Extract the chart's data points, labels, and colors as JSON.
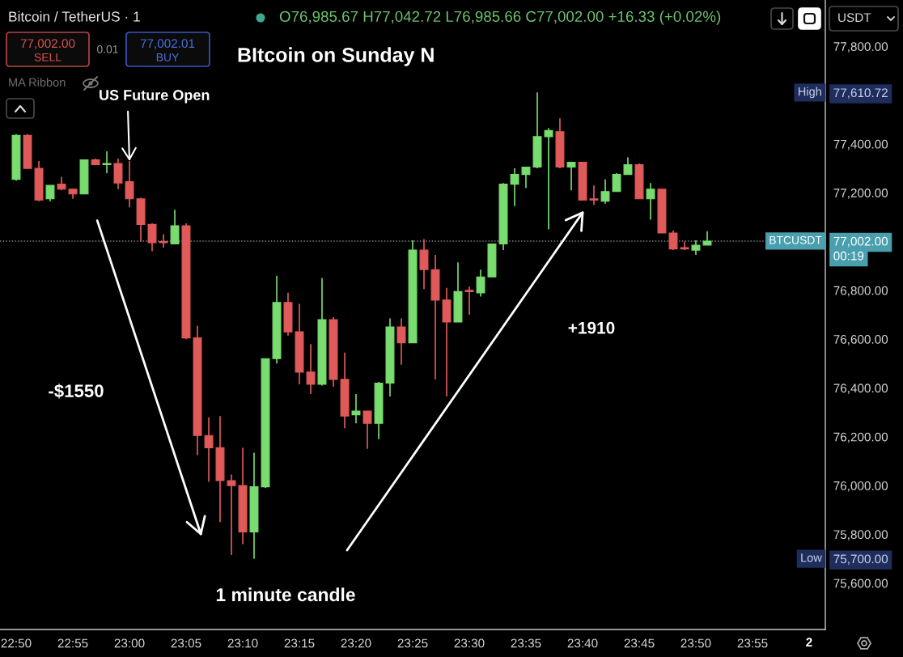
{
  "chart_data": {
    "type": "candlestick",
    "title": "BItcoin on Sunday N",
    "x": [
      22.8333,
      22.85,
      22.8667,
      22.8833,
      22.9,
      22.9167,
      22.9333,
      22.95,
      22.9667,
      22.9833,
      23.0,
      23.0167,
      23.0333,
      23.05,
      23.0667,
      23.0833,
      23.1,
      23.1167,
      23.1333,
      23.15,
      23.1667,
      23.1833,
      23.2,
      23.2167,
      23.2333,
      23.25,
      23.2667,
      23.2833,
      23.3,
      23.3167,
      23.3333,
      23.35,
      23.3667,
      23.3833,
      23.4,
      23.4167,
      23.4333,
      23.45,
      23.4667,
      23.4833,
      23.5,
      23.5167,
      23.5333,
      23.55,
      23.5667,
      23.5833,
      23.6,
      23.6167,
      23.6333,
      23.65,
      23.6667,
      23.6833,
      23.7,
      23.7167,
      23.7333,
      23.75,
      23.7667,
      23.7833,
      23.8,
      23.8167,
      23.8333,
      23.85
    ],
    "ohlc": [
      [
        77255,
        77440,
        77250,
        77435
      ],
      [
        77435,
        77440,
        77300,
        77300
      ],
      [
        77300,
        77330,
        77165,
        77170
      ],
      [
        77175,
        77230,
        77165,
        77230
      ],
      [
        77235,
        77265,
        77210,
        77215
      ],
      [
        77215,
        77215,
        77175,
        77195
      ],
      [
        77195,
        77335,
        77195,
        77335
      ],
      [
        77335,
        77340,
        77315,
        77315
      ],
      [
        77315,
        77370,
        77280,
        77320
      ],
      [
        77320,
        77340,
        77215,
        77240
      ],
      [
        77245,
        77330,
        77140,
        77175
      ],
      [
        77175,
        77180,
        77000,
        77070
      ],
      [
        77070,
        77075,
        76960,
        76995
      ],
      [
        77000,
        77030,
        76975,
        76995
      ],
      [
        76990,
        77130,
        76990,
        77065
      ],
      [
        77065,
        77075,
        76600,
        76605
      ],
      [
        76605,
        76655,
        76125,
        76205
      ],
      [
        76205,
        76280,
        76015,
        76155
      ],
      [
        76155,
        76285,
        75850,
        76020
      ],
      [
        76020,
        76045,
        75715,
        76000
      ],
      [
        76000,
        76155,
        75760,
        75810
      ],
      [
        75810,
        76135,
        75700.0,
        75995
      ],
      [
        75995,
        76520,
        75990,
        76520
      ],
      [
        76520,
        76860,
        76500,
        76750
      ],
      [
        76750,
        76790,
        76615,
        76630
      ],
      [
        76630,
        76745,
        76415,
        76465
      ],
      [
        76465,
        76580,
        76375,
        76415
      ],
      [
        76415,
        76850,
        76410,
        76680
      ],
      [
        76680,
        76690,
        76405,
        76435
      ],
      [
        76435,
        76545,
        76235,
        76285
      ],
      [
        76290,
        76375,
        76255,
        76305
      ],
      [
        76305,
        76305,
        76150,
        76255
      ],
      [
        76255,
        76425,
        76190,
        76420
      ],
      [
        76420,
        76685,
        76365,
        76650
      ],
      [
        76650,
        76685,
        76495,
        76585
      ],
      [
        76585,
        77005,
        76585,
        76965
      ],
      [
        76965,
        77010,
        76805,
        76885
      ],
      [
        76885,
        76945,
        76435,
        76760
      ],
      [
        76760,
        76810,
        76365,
        76670
      ],
      [
        76670,
        76915,
        76670,
        76795
      ],
      [
        76800,
        76815,
        76700,
        76795
      ],
      [
        76790,
        76885,
        76775,
        76855
      ],
      [
        76855,
        76990,
        76855,
        76990
      ],
      [
        76990,
        77240,
        76965,
        77235
      ],
      [
        77235,
        77300,
        77145,
        77275
      ],
      [
        77275,
        77305,
        77220,
        77305
      ],
      [
        77305,
        77610.72,
        77300,
        77430
      ],
      [
        77430,
        77465,
        77050,
        77455
      ],
      [
        77450,
        77505,
        77300,
        77305
      ],
      [
        77305,
        77325,
        77210,
        77325
      ],
      [
        77325,
        77325,
        77170,
        77170
      ],
      [
        77175,
        77230,
        77150,
        77170
      ],
      [
        77165,
        77255,
        77155,
        77205
      ],
      [
        77205,
        77280,
        77205,
        77275
      ],
      [
        77275,
        77345,
        77275,
        77315
      ],
      [
        77315,
        77320,
        77175,
        77175
      ],
      [
        77175,
        77240,
        77090,
        77215
      ],
      [
        77215,
        77215,
        77035,
        77035
      ],
      [
        77035,
        77045,
        76965,
        76970
      ],
      [
        76975,
        77000,
        76965,
        76970
      ],
      [
        76965,
        77005,
        76945,
        76985
      ],
      [
        76985.67,
        77042.72,
        76985.66,
        77002.0
      ]
    ],
    "colors": [
      "#78dc6e",
      "#e05a5a",
      "#e05a5a",
      "#78dc6e",
      "#e05a5a",
      "#e05a5a",
      "#78dc6e",
      "#e05a5a",
      "#78dc6e",
      "#e05a5a",
      "#e05a5a",
      "#e05a5a",
      "#e05a5a",
      "#e05a5a",
      "#78dc6e",
      "#e05a5a",
      "#e05a5a",
      "#e05a5a",
      "#e05a5a",
      "#e05a5a",
      "#e05a5a",
      "#78dc6e",
      "#78dc6e",
      "#78dc6e",
      "#e05a5a",
      "#e05a5a",
      "#e05a5a",
      "#78dc6e",
      "#e05a5a",
      "#e05a5a",
      "#78dc6e",
      "#e05a5a",
      "#78dc6e",
      "#78dc6e",
      "#e05a5a",
      "#78dc6e",
      "#e05a5a",
      "#e05a5a",
      "#e05a5a",
      "#78dc6e",
      "#e05a5a",
      "#78dc6e",
      "#78dc6e",
      "#78dc6e",
      "#78dc6e",
      "#78dc6e",
      "#78dc6e",
      "#78dc6e",
      "#e05a5a",
      "#78dc6e",
      "#e05a5a",
      "#e05a5a",
      "#78dc6e",
      "#78dc6e",
      "#78dc6e",
      "#e05a5a",
      "#78dc6e",
      "#e05a5a",
      "#e05a5a",
      "#e05a5a",
      "#78dc6e",
      "#78dc6e"
    ],
    "xlim": [
      22.8095,
      24.0238
    ],
    "ylim": [
      75410,
      77990
    ],
    "xticks": [
      {
        "value": 22.8333,
        "label": "22:50"
      },
      {
        "value": 22.9167,
        "label": "22:55"
      },
      {
        "value": 23.0,
        "label": "23:00"
      },
      {
        "value": 23.0833,
        "label": "23:05"
      },
      {
        "value": 23.1667,
        "label": "23:10"
      },
      {
        "value": 23.25,
        "label": "23:15"
      },
      {
        "value": 23.3333,
        "label": "23:20"
      },
      {
        "value": 23.4167,
        "label": "23:25"
      },
      {
        "value": 23.5,
        "label": "23:30"
      },
      {
        "value": 23.5833,
        "label": "23:35"
      },
      {
        "value": 23.6667,
        "label": "23:40"
      },
      {
        "value": 23.75,
        "label": "23:45"
      },
      {
        "value": 23.8333,
        "label": "23:50"
      },
      {
        "value": 23.9167,
        "label": "23:55"
      }
    ],
    "yticks": [
      {
        "value": 75600,
        "label": "75,600.00"
      },
      {
        "value": 75700.0,
        "label": "75,700.00"
      },
      {
        "value": 75800,
        "label": "75,800.00"
      },
      {
        "value": 76000,
        "label": "76,000.00"
      },
      {
        "value": 76200,
        "label": "76,200.00"
      },
      {
        "value": 76400,
        "label": "76,400.00"
      },
      {
        "value": 76600,
        "label": "76,600.00"
      },
      {
        "value": 76800,
        "label": "76,800.00"
      },
      {
        "value": 77002.0,
        "label": "77,002.00"
      },
      {
        "value": 77200,
        "label": "77,200.00"
      },
      {
        "value": 77400,
        "label": "77,400.00"
      },
      {
        "value": 77610.72,
        "label": "77,610.72"
      },
      {
        "value": 77800,
        "label": "77,800.00"
      }
    ],
    "ref_lines": [
      {
        "axis": "y",
        "value": 77002.0,
        "label": "BTCUSDT",
        "color": "#8a8a8a",
        "line_style": "dotted"
      }
    ],
    "annotations": [
      "Bitcoin / TetherUS · 1",
      "O76,985.67 H77,042.72 L76,985.66 C77,002.00 +16.33 (+0.02%)",
      "77,002.00",
      "SELL",
      "0.01",
      "77,002.01",
      "BUY",
      "MA Ribbon",
      "USDT",
      {
        "text": "US Future Open",
        "x": 23.0,
        "y": 77330
      },
      "-$1550",
      "+1910",
      "1 minute candle",
      "High",
      "Low",
      "00:19",
      "2"
    ]
  }
}
